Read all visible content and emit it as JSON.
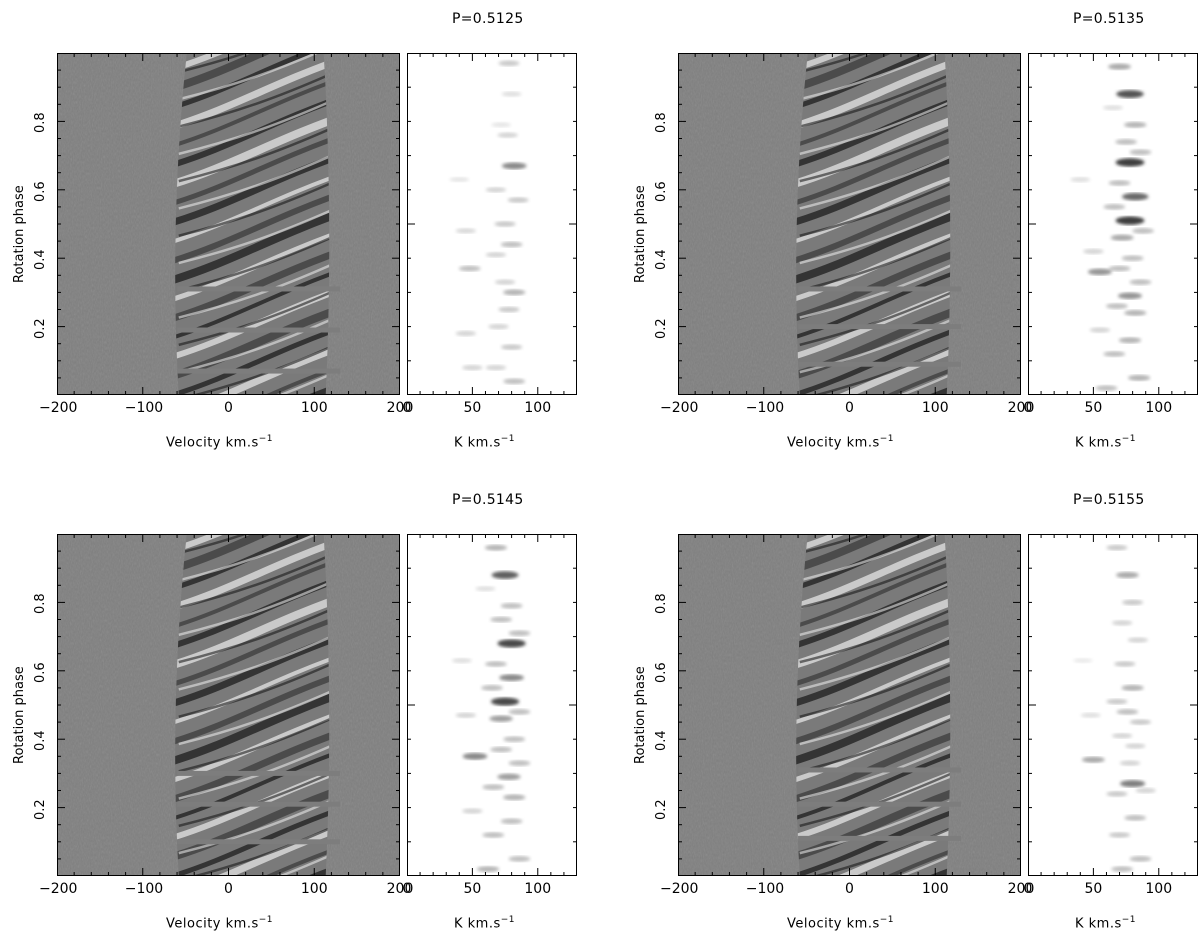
{
  "chart_data": [
    {
      "type": "heatmap",
      "panel": "top-left",
      "title": "P=0.5125",
      "dynamic_spectrum": {
        "xlabel": "Velocity   km.s",
        "xlabel_sup": "−1",
        "ylabel": "Rotation phase",
        "xlim": [
          -200,
          200
        ],
        "ylim": [
          0,
          1
        ],
        "xticks": [
          "−200",
          "−100",
          "0",
          "100",
          "200"
        ],
        "yticks": [
          "0.2",
          "0.4",
          "0.6",
          "0.8"
        ],
        "gap_phases": [
          0.07,
          0.19,
          0.31
        ]
      },
      "k_map": {
        "xlabel": "K   km.s",
        "xlabel_sup": "−1",
        "xlim": [
          0,
          130
        ],
        "xticks": [
          "0",
          "50",
          "100"
        ],
        "blobs": [
          [
            78,
            0.97,
            0.25
          ],
          [
            80,
            0.88,
            0.15
          ],
          [
            72,
            0.79,
            0.12
          ],
          [
            77,
            0.76,
            0.2
          ],
          [
            82,
            0.67,
            0.55
          ],
          [
            40,
            0.63,
            0.12
          ],
          [
            68,
            0.6,
            0.2
          ],
          [
            85,
            0.57,
            0.25
          ],
          [
            75,
            0.5,
            0.25
          ],
          [
            45,
            0.48,
            0.18
          ],
          [
            80,
            0.44,
            0.3
          ],
          [
            68,
            0.41,
            0.2
          ],
          [
            48,
            0.37,
            0.3
          ],
          [
            75,
            0.33,
            0.2
          ],
          [
            82,
            0.3,
            0.35
          ],
          [
            78,
            0.25,
            0.25
          ],
          [
            70,
            0.2,
            0.2
          ],
          [
            45,
            0.18,
            0.2
          ],
          [
            80,
            0.14,
            0.25
          ],
          [
            68,
            0.08,
            0.2
          ],
          [
            50,
            0.08,
            0.2
          ],
          [
            82,
            0.04,
            0.3
          ]
        ]
      }
    },
    {
      "type": "heatmap",
      "panel": "top-right",
      "title": "P=0.5135",
      "dynamic_spectrum": {
        "xlabel": "Velocity   km.s",
        "xlabel_sup": "−1",
        "ylabel": "Rotation phase",
        "xlim": [
          -200,
          200
        ],
        "ylim": [
          0,
          1
        ],
        "xticks": [
          "−200",
          "−100",
          "0",
          "100",
          "200"
        ],
        "yticks": [
          "0.2",
          "0.4",
          "0.6",
          "0.8"
        ],
        "gap_phases": [
          0.09,
          0.2,
          0.31
        ]
      },
      "k_map": {
        "xlabel": "K   km.s",
        "xlabel_sup": "−1",
        "xlim": [
          0,
          130
        ],
        "xticks": [
          "0",
          "50",
          "100"
        ],
        "blobs": [
          [
            70,
            0.96,
            0.4
          ],
          [
            78,
            0.88,
            0.8
          ],
          [
            65,
            0.84,
            0.15
          ],
          [
            82,
            0.79,
            0.35
          ],
          [
            75,
            0.74,
            0.3
          ],
          [
            86,
            0.71,
            0.3
          ],
          [
            78,
            0.68,
            0.9
          ],
          [
            40,
            0.63,
            0.15
          ],
          [
            70,
            0.62,
            0.3
          ],
          [
            82,
            0.58,
            0.7
          ],
          [
            66,
            0.55,
            0.3
          ],
          [
            78,
            0.51,
            0.9
          ],
          [
            88,
            0.48,
            0.3
          ],
          [
            72,
            0.46,
            0.4
          ],
          [
            50,
            0.42,
            0.2
          ],
          [
            80,
            0.4,
            0.3
          ],
          [
            70,
            0.37,
            0.3
          ],
          [
            55,
            0.36,
            0.5
          ],
          [
            86,
            0.33,
            0.3
          ],
          [
            78,
            0.29,
            0.5
          ],
          [
            68,
            0.26,
            0.3
          ],
          [
            82,
            0.24,
            0.35
          ],
          [
            55,
            0.19,
            0.2
          ],
          [
            78,
            0.16,
            0.35
          ],
          [
            66,
            0.12,
            0.3
          ],
          [
            85,
            0.05,
            0.35
          ],
          [
            60,
            0.02,
            0.3
          ]
        ]
      }
    },
    {
      "type": "heatmap",
      "panel": "bottom-left",
      "title": "P=0.5145",
      "dynamic_spectrum": {
        "xlabel": "Velocity   km.s",
        "xlabel_sup": "−1",
        "ylabel": "Rotation phase",
        "xlim": [
          -200,
          200
        ],
        "ylim": [
          0,
          1
        ],
        "xticks": [
          "−200",
          "−100",
          "0",
          "100",
          "200"
        ],
        "yticks": [
          "0.2",
          "0.4",
          "0.6",
          "0.8"
        ],
        "gap_phases": [
          0.1,
          0.21,
          0.3
        ]
      },
      "k_map": {
        "xlabel": "K   km.s",
        "xlabel_sup": "−1",
        "xlim": [
          0,
          130
        ],
        "xticks": [
          "0",
          "50",
          "100"
        ],
        "blobs": [
          [
            68,
            0.96,
            0.35
          ],
          [
            75,
            0.88,
            0.75
          ],
          [
            60,
            0.84,
            0.15
          ],
          [
            80,
            0.79,
            0.3
          ],
          [
            72,
            0.75,
            0.3
          ],
          [
            86,
            0.71,
            0.3
          ],
          [
            80,
            0.68,
            0.85
          ],
          [
            42,
            0.63,
            0.15
          ],
          [
            68,
            0.62,
            0.3
          ],
          [
            80,
            0.58,
            0.55
          ],
          [
            65,
            0.55,
            0.3
          ],
          [
            75,
            0.51,
            0.85
          ],
          [
            86,
            0.48,
            0.3
          ],
          [
            72,
            0.46,
            0.45
          ],
          [
            45,
            0.47,
            0.2
          ],
          [
            82,
            0.4,
            0.3
          ],
          [
            72,
            0.37,
            0.3
          ],
          [
            52,
            0.35,
            0.55
          ],
          [
            86,
            0.33,
            0.3
          ],
          [
            78,
            0.29,
            0.45
          ],
          [
            66,
            0.26,
            0.3
          ],
          [
            82,
            0.23,
            0.35
          ],
          [
            50,
            0.19,
            0.2
          ],
          [
            80,
            0.16,
            0.3
          ],
          [
            66,
            0.12,
            0.3
          ],
          [
            86,
            0.05,
            0.3
          ],
          [
            62,
            0.02,
            0.35
          ]
        ]
      }
    },
    {
      "type": "heatmap",
      "panel": "bottom-right",
      "title": "P=0.5155",
      "dynamic_spectrum": {
        "xlabel": "Velocity   km.s",
        "xlabel_sup": "−1",
        "ylabel": "Rotation phase",
        "xlim": [
          -200,
          200
        ],
        "ylim": [
          0,
          1
        ],
        "xticks": [
          "−200",
          "−100",
          "0",
          "100",
          "200"
        ],
        "yticks": [
          "0.2",
          "0.4",
          "0.6",
          "0.8"
        ],
        "gap_phases": [
          0.11,
          0.21,
          0.31
        ]
      },
      "k_map": {
        "xlabel": "K   km.s",
        "xlabel_sup": "−1",
        "xlim": [
          0,
          130
        ],
        "xticks": [
          "0",
          "50",
          "100"
        ],
        "blobs": [
          [
            68,
            0.96,
            0.25
          ],
          [
            76,
            0.88,
            0.4
          ],
          [
            80,
            0.8,
            0.25
          ],
          [
            72,
            0.74,
            0.2
          ],
          [
            84,
            0.69,
            0.2
          ],
          [
            42,
            0.63,
            0.1
          ],
          [
            74,
            0.62,
            0.25
          ],
          [
            80,
            0.55,
            0.35
          ],
          [
            68,
            0.51,
            0.25
          ],
          [
            76,
            0.48,
            0.3
          ],
          [
            86,
            0.45,
            0.25
          ],
          [
            48,
            0.47,
            0.15
          ],
          [
            72,
            0.41,
            0.2
          ],
          [
            82,
            0.38,
            0.2
          ],
          [
            50,
            0.34,
            0.4
          ],
          [
            78,
            0.33,
            0.2
          ],
          [
            80,
            0.27,
            0.6
          ],
          [
            90,
            0.25,
            0.2
          ],
          [
            68,
            0.24,
            0.25
          ],
          [
            82,
            0.17,
            0.3
          ],
          [
            70,
            0.12,
            0.25
          ],
          [
            86,
            0.05,
            0.3
          ],
          [
            72,
            0.02,
            0.3
          ]
        ]
      }
    }
  ]
}
